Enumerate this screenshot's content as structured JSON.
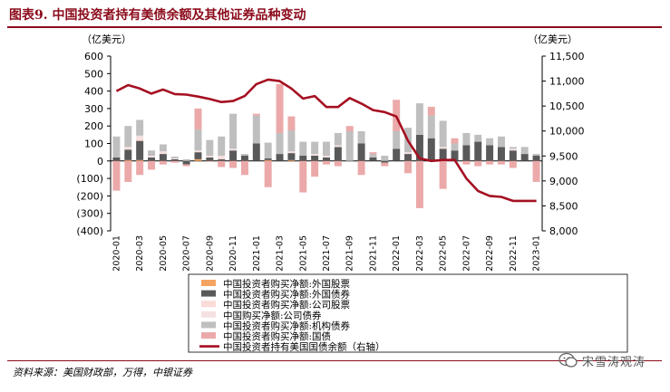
{
  "page": {
    "title": "图表9. 中国投资者持有美债余额及其他证券品种变动",
    "source": "资料来源：美国财政部，万得，中银证券",
    "watermark": "宋雪涛观涛"
  },
  "colors": {
    "title": "#8B0A1A",
    "foreign_stocks": "#F4A460",
    "foreign_bonds": "#595959",
    "corporate_stocks": "#FADBD8",
    "corporate_bonds": "#F5E1E1",
    "agency_bonds": "#BFBFBF",
    "treasuries": "#EBA9A9",
    "treasury_holdings": "#A50F21"
  },
  "chart_data": {
    "type": "bar",
    "stacked": true,
    "unit_left": "（亿美元）",
    "unit_right": "（亿美元）",
    "ylim_left": [
      -400,
      600
    ],
    "yticks_left": [
      "600",
      "500",
      "400",
      "300",
      "200",
      "100",
      "0",
      "(100)",
      "(200)",
      "(300)",
      "(400)"
    ],
    "ylim_right": [
      8000,
      11500
    ],
    "yticks_right": [
      "11,500",
      "11,000",
      "10,500",
      "10,000",
      "9,500",
      "9,000",
      "8,500",
      "8,000"
    ],
    "grid": false,
    "legend_position": "bottom",
    "categories": [
      "2020-01",
      "2020-02",
      "2020-03",
      "2020-04",
      "2020-05",
      "2020-06",
      "2020-07",
      "2020-08",
      "2020-09",
      "2020-10",
      "2020-11",
      "2020-12",
      "2021-01",
      "2021-02",
      "2021-03",
      "2021-04",
      "2021-05",
      "2021-06",
      "2021-07",
      "2021-08",
      "2021-09",
      "2021-10",
      "2021-11",
      "2021-12",
      "2022-01",
      "2022-02",
      "2022-03",
      "2022-04",
      "2022-05",
      "2022-06",
      "2022-07",
      "2022-08",
      "2022-09",
      "2022-10",
      "2022-11",
      "2022-12",
      "2023-01"
    ],
    "x_tick_labels": [
      "2020-01",
      "2020-03",
      "2020-05",
      "2020-07",
      "2020-09",
      "2020-11",
      "2021-01",
      "2021-03",
      "2021-05",
      "2021-07",
      "2021-09",
      "2021-11",
      "2022-01",
      "2022-03",
      "2022-05",
      "2022-07",
      "2022-09",
      "2022-11",
      "2023-01"
    ],
    "series": [
      {
        "name": "中国投资者购买净额:外国股票",
        "kind": "bar",
        "color_key": "foreign_stocks",
        "values": [
          0,
          5,
          5,
          0,
          0,
          0,
          0,
          10,
          0,
          0,
          0,
          0,
          0,
          5,
          0,
          5,
          0,
          0,
          0,
          0,
          0,
          0,
          0,
          0,
          0,
          0,
          0,
          0,
          0,
          0,
          0,
          0,
          0,
          0,
          0,
          0,
          0
        ]
      },
      {
        "name": "中国投资者购买净额:外国债券",
        "kind": "bar",
        "color_key": "foreign_bonds",
        "values": [
          20,
          60,
          110,
          20,
          40,
          10,
          -20,
          40,
          20,
          10,
          60,
          30,
          100,
          10,
          40,
          40,
          30,
          30,
          20,
          80,
          0,
          100,
          20,
          -10,
          70,
          40,
          150,
          130,
          70,
          60,
          90,
          110,
          90,
          80,
          60,
          40,
          30
        ]
      },
      {
        "name": "中国投资者购买净额:公司股票",
        "kind": "bar",
        "color_key": "corporate_stocks",
        "values": [
          0,
          5,
          10,
          0,
          5,
          0,
          0,
          0,
          0,
          10,
          0,
          0,
          0,
          0,
          0,
          0,
          0,
          0,
          0,
          0,
          0,
          0,
          0,
          0,
          0,
          0,
          0,
          0,
          0,
          0,
          0,
          0,
          0,
          0,
          0,
          0,
          0
        ]
      },
      {
        "name": "中国购买净额:公司债券",
        "kind": "bar",
        "color_key": "corporate_bonds",
        "values": [
          0,
          10,
          20,
          10,
          10,
          5,
          0,
          10,
          10,
          10,
          10,
          0,
          0,
          0,
          0,
          10,
          0,
          10,
          10,
          10,
          0,
          0,
          0,
          0,
          0,
          10,
          0,
          0,
          10,
          0,
          0,
          0,
          0,
          0,
          10,
          0,
          0
        ]
      },
      {
        "name": "中国投资者购买净额:机构债券",
        "kind": "bar",
        "color_key": "agency_bonds",
        "values": [
          120,
          120,
          90,
          30,
          40,
          10,
          10,
          120,
          90,
          110,
          200,
          10,
          160,
          90,
          120,
          120,
          80,
          70,
          80,
          70,
          170,
          70,
          20,
          30,
          100,
          140,
          180,
          130,
          150,
          40,
          70,
          40,
          40,
          60,
          10,
          40,
          10
        ]
      },
      {
        "name": "中国投资者购买净额:国债",
        "kind": "bar",
        "color_key": "treasuries",
        "values": [
          -170,
          -120,
          -80,
          -50,
          -20,
          -10,
          -10,
          120,
          -5,
          -35,
          -40,
          -80,
          10,
          -150,
          280,
          80,
          -180,
          -90,
          -20,
          -30,
          30,
          -80,
          10,
          -20,
          180,
          -70,
          -270,
          50,
          -160,
          30,
          -20,
          -30,
          -20,
          -20,
          -40,
          0,
          -120
        ]
      },
      {
        "name": "中国投资者持有美国国债余额（右轴）",
        "kind": "line",
        "axis": "right",
        "color_key": "treasury_holdings",
        "values": [
          10800,
          10920,
          10850,
          10750,
          10830,
          10740,
          10730,
          10690,
          10640,
          10580,
          10600,
          10700,
          10940,
          11030,
          11000,
          10850,
          10650,
          10700,
          10480,
          10480,
          10660,
          10550,
          10420,
          10380,
          10290,
          9800,
          9450,
          9400,
          9420,
          9420,
          9050,
          8800,
          8700,
          8680,
          8600,
          8600,
          8600
        ]
      }
    ]
  }
}
